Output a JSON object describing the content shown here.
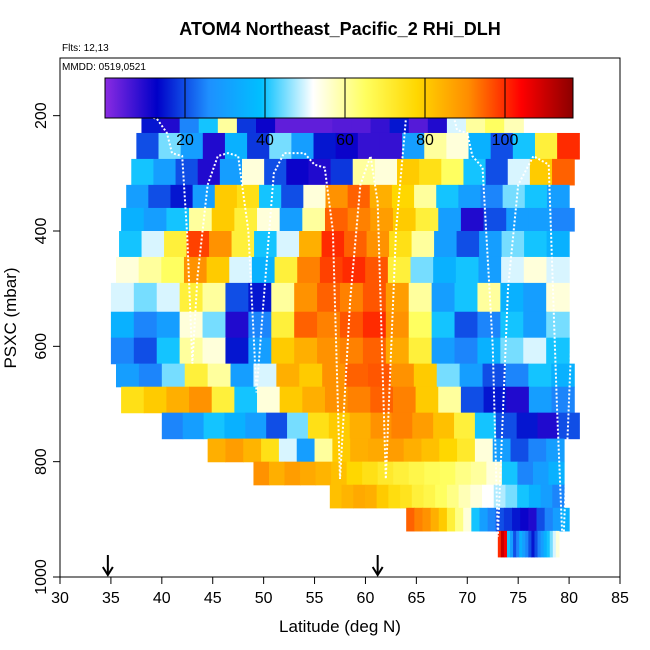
{
  "chart_data": {
    "type": "heatmap",
    "title": "ATOM4 Northeast_Pacific_2 RHi_DLH",
    "flights_text": "Flts: 12,13",
    "date_text": "MMDD: 0519,0521",
    "xlabel": "Latitude (deg N)",
    "ylabel": "PSXC (mbar)",
    "xlim": [
      30,
      85
    ],
    "ylim": [
      1000,
      100
    ],
    "x_ticks": [
      30,
      35,
      40,
      45,
      50,
      55,
      60,
      65,
      70,
      75,
      80,
      85
    ],
    "y_ticks": [
      200,
      400,
      600,
      800,
      1000
    ],
    "colorbar": {
      "range": [
        0,
        117
      ],
      "ticks": [
        20,
        40,
        60,
        80,
        100
      ],
      "colors": [
        "#8a2be2",
        "#0000c8",
        "#1e90ff",
        "#00bfff",
        "#ffffff",
        "#ffff60",
        "#ffd700",
        "#ff8c00",
        "#ff0000",
        "#8b0000"
      ]
    },
    "arrows_at_latitude": [
      34.7,
      61.2
    ],
    "series": [
      {
        "pressure": [
          175,
          200,
          230,
          275,
          320,
          360,
          400,
          445,
          490,
          540,
          585,
          630,
          670,
          715,
          760,
          800,
          840,
          880,
          920,
          965,
          995
        ],
        "rows": [
          {
            "x": [
              38.5,
              69.5
            ],
            "v": [
              70,
              110,
              86,
              84,
              70,
              58,
              45,
              30,
              10,
              8,
              8,
              6,
              6,
              6,
              6,
              4,
              6,
              6,
              5,
              8
            ]
          },
          {
            "x": [
              38.0,
              75.5
            ],
            "v": [
              15,
              10,
              25,
              40,
              60,
              18,
              12,
              4,
              4,
              4,
              5,
              5,
              8,
              15,
              5,
              10,
              50,
              60,
              65,
              58
            ]
          },
          {
            "x": [
              37.5,
              81.0
            ],
            "v": [
              20,
              45,
              30,
              10,
              35,
              18,
              45,
              30,
              15,
              12,
              8,
              8,
              30,
              60,
              55,
              35,
              20,
              40,
              70,
              100
            ]
          },
          {
            "x": [
              37.0,
              80.5
            ],
            "v": [
              40,
              30,
              20,
              10,
              30,
              55,
              20,
              12,
              10,
              18,
              60,
              55,
              80,
              75,
              65,
              40,
              20,
              50,
              80,
              95
            ]
          },
          {
            "x": [
              36.5,
              80.0
            ],
            "v": [
              30,
              20,
              15,
              30,
              80,
              75,
              40,
              20,
              55,
              90,
              95,
              85,
              78,
              60,
              40,
              30,
              25,
              45,
              40,
              30
            ]
          },
          {
            "x": [
              36.0,
              80.5
            ],
            "v": [
              35,
              30,
              40,
              60,
              80,
              70,
              55,
              30,
              60,
              95,
              92,
              88,
              80,
              70,
              30,
              10,
              20,
              30,
              30,
              25
            ]
          },
          {
            "x": [
              35.8,
              80.0
            ],
            "v": [
              40,
              50,
              70,
              98,
              90,
              70,
              40,
              50,
              85,
              100,
              95,
              90,
              75,
              60,
              30,
              20,
              30,
              45,
              40,
              35
            ]
          },
          {
            "x": [
              35.5,
              80.0
            ],
            "v": [
              55,
              60,
              65,
              90,
              80,
              50,
              35,
              70,
              92,
              98,
              100,
              96,
              70,
              45,
              35,
              40,
              30,
              50,
              55,
              50
            ]
          },
          {
            "x": [
              35.0,
              80.0
            ],
            "v": [
              50,
              45,
              50,
              70,
              60,
              20,
              15,
              60,
              90,
              95,
              92,
              96,
              88,
              60,
              30,
              40,
              60,
              35,
              30,
              55
            ]
          },
          {
            "x": [
              35.0,
              80.0
            ],
            "v": [
              35,
              25,
              30,
              55,
              45,
              10,
              25,
              70,
              95,
              92,
              96,
              100,
              90,
              65,
              40,
              20,
              25,
              40,
              30,
              45
            ]
          },
          {
            "x": [
              35.0,
              80.0
            ],
            "v": [
              25,
              20,
              40,
              60,
              55,
              15,
              30,
              80,
              85,
              90,
              92,
              95,
              86,
              70,
              30,
              25,
              35,
              45,
              50,
              40
            ]
          },
          {
            "x": [
              35.5,
              80.5
            ],
            "v": [
              30,
              25,
              45,
              70,
              60,
              30,
              50,
              85,
              80,
              90,
              95,
              96,
              90,
              80,
              45,
              30,
              20,
              25,
              40,
              35
            ]
          },
          {
            "x": [
              36.0,
              80.5
            ],
            "v": [
              75,
              80,
              85,
              90,
              70,
              40,
              55,
              80,
              85,
              90,
              92,
              95,
              92,
              80,
              60,
              20,
              15,
              10,
              30,
              25
            ]
          },
          {
            "x": [
              40.0,
              81.0
            ],
            "v": [
              25,
              30,
              40,
              35,
              30,
              20,
              45,
              75,
              80,
              85,
              90,
              92,
              88,
              82,
              70,
              40,
              20,
              15,
              10,
              20
            ]
          },
          {
            "x": [
              44.5,
              79.5
            ],
            "v": [
              85,
              88,
              84,
              75,
              50,
              30,
              60,
              80,
              85,
              86,
              88,
              85,
              82,
              78,
              72,
              55,
              30,
              20,
              25,
              30
            ]
          },
          {
            "x": [
              49.0,
              79.5
            ],
            "v": [
              90,
              85,
              88,
              86,
              84,
              82,
              78,
              75,
              72,
              70,
              68,
              66,
              65,
              62,
              60,
              55,
              40,
              25,
              30,
              35
            ]
          },
          {
            "x": [
              56.5,
              79.5
            ],
            "v": [
              82,
              84,
              86,
              85,
              80,
              76,
              74,
              70,
              68,
              65,
              62,
              58,
              55,
              52,
              48,
              45,
              40,
              35,
              30,
              25
            ]
          },
          {
            "x": [
              64.0,
              80.0
            ],
            "v": [
              95,
              92,
              90,
              85,
              80,
              70,
              62,
              55,
              40,
              30,
              25,
              20,
              18,
              15,
              12,
              10,
              20,
              25,
              30,
              35
            ]
          },
          {
            "x": [
              73.0,
              79.0
            ],
            "v": [
              100,
              110,
              105,
              40,
              30,
              20,
              25,
              35,
              30,
              25,
              20,
              15,
              20,
              25,
              30,
              35,
              40,
              45,
              50,
              55
            ]
          }
        ]
      }
    ],
    "flight_track_pressure": [
      [
        38.0,
        200
      ],
      [
        39.5,
        205
      ],
      [
        40.5,
        230
      ],
      [
        41.0,
        265
      ],
      [
        42.0,
        270
      ],
      [
        42.5,
        410
      ],
      [
        43.0,
        630
      ],
      [
        43.5,
        480
      ],
      [
        44.5,
        320
      ],
      [
        45.5,
        270
      ],
      [
        46.5,
        265
      ],
      [
        47.5,
        270
      ],
      [
        48.5,
        400
      ],
      [
        49.3,
        680
      ],
      [
        50.0,
        520
      ],
      [
        51.0,
        300
      ],
      [
        52.0,
        265
      ],
      [
        53.0,
        265
      ],
      [
        54.0,
        265
      ],
      [
        55.0,
        285
      ],
      [
        56.0,
        290
      ],
      [
        56.8,
        400
      ],
      [
        57.5,
        830
      ],
      [
        58.5,
        520
      ],
      [
        59.5,
        320
      ],
      [
        60.5,
        270
      ],
      [
        61.2,
        350
      ],
      [
        62.0,
        830
      ],
      [
        63.0,
        400
      ],
      [
        64.0,
        200
      ],
      [
        66.0,
        190
      ],
      [
        68.5,
        190
      ],
      [
        69.0,
        225
      ],
      [
        70.0,
        230
      ],
      [
        70.5,
        270
      ],
      [
        71.5,
        290
      ],
      [
        72.5,
        600
      ],
      [
        73.0,
        930
      ],
      [
        74.0,
        500
      ],
      [
        75.0,
        320
      ],
      [
        76.5,
        270
      ],
      [
        78.0,
        285
      ],
      [
        78.8,
        700
      ],
      [
        79.4,
        960
      ],
      [
        80.2,
        600
      ],
      [
        81.0,
        290
      ]
    ]
  }
}
